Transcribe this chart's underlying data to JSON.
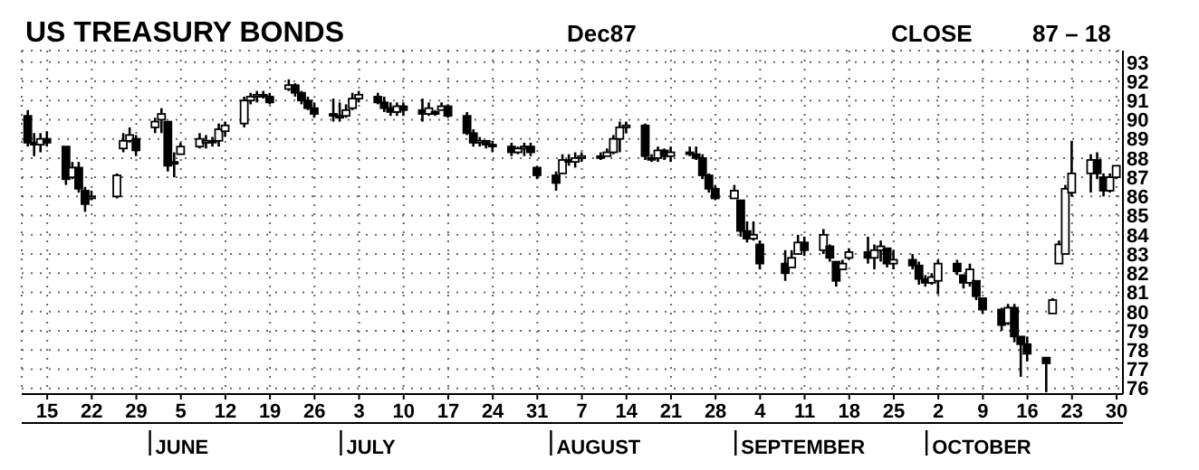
{
  "chart_data": {
    "type": "candlestick",
    "title": "US TREASURY BONDS",
    "subtitle": "Dec87",
    "color": "#000000",
    "annotations": [
      "CLOSE",
      "87 – 18",
      "JUNE",
      "JULY",
      "AUGUST",
      "SEPTEMBER",
      "OCTOBER"
    ],
    "x": [
      "--05-12",
      "--05-13",
      "--05-14",
      "--05-15",
      "--05-18",
      "--05-19",
      "--05-20",
      "--05-21",
      "--05-22",
      "--05-26",
      "--05-27",
      "--05-28",
      "--05-29",
      "--06-01",
      "--06-02",
      "--06-03",
      "--06-04",
      "--06-05",
      "--06-08",
      "--06-09",
      "--06-10",
      "--06-11",
      "--06-12",
      "--06-15",
      "--06-16",
      "--06-17",
      "--06-18",
      "--06-19",
      "--06-22",
      "--06-23",
      "--06-24",
      "--06-25",
      "--06-26",
      "--06-29",
      "--06-30",
      "--07-01",
      "--07-02",
      "--07-03",
      "--07-06",
      "--07-07",
      "--07-08",
      "--07-09",
      "--07-10",
      "--07-13",
      "--07-14",
      "--07-15",
      "--07-16",
      "--07-17",
      "--07-20",
      "--07-21",
      "--07-22",
      "--07-23",
      "--07-24",
      "--07-27",
      "--07-28",
      "--07-29",
      "--07-30",
      "--07-31",
      "--08-03",
      "--08-04",
      "--08-05",
      "--08-06",
      "--08-07",
      "--08-10",
      "--08-11",
      "--08-12",
      "--08-13",
      "--08-14",
      "--08-17",
      "--08-18",
      "--08-19",
      "--08-20",
      "--08-21",
      "--08-24",
      "--08-25",
      "--08-26",
      "--08-27",
      "--08-28",
      "--08-31",
      "--09-01",
      "--09-02",
      "--09-03",
      "--09-04",
      "--09-08",
      "--09-09",
      "--09-10",
      "--09-11",
      "--09-14",
      "--09-15",
      "--09-16",
      "--09-17",
      "--09-18",
      "--09-21",
      "--09-22",
      "--09-23",
      "--09-24",
      "--09-25",
      "--09-28",
      "--09-29",
      "--09-30",
      "--10-01",
      "--10-02",
      "--10-05",
      "--10-06",
      "--10-07",
      "--10-08",
      "--10-09",
      "--10-12",
      "--10-13",
      "--10-14",
      "--10-15",
      "--10-16",
      "--10-19",
      "--10-20",
      "--10-21",
      "--10-22",
      "--10-23",
      "--10-26",
      "--10-27",
      "--10-28",
      "--10-29",
      "--10-30"
    ],
    "ohlc": [
      [
        90.2,
        90.5,
        88.6,
        88.8
      ],
      [
        88.8,
        89.3,
        88.1,
        88.7
      ],
      [
        88.7,
        89.3,
        88.3,
        89.0
      ],
      [
        89.0,
        89.4,
        88.6,
        88.8
      ],
      [
        88.6,
        88.6,
        86.6,
        86.9
      ],
      [
        87.0,
        87.8,
        86.9,
        87.5
      ],
      [
        87.5,
        87.8,
        86.2,
        86.4
      ],
      [
        86.3,
        86.5,
        85.2,
        85.6
      ],
      [
        85.9,
        86.3,
        85.8,
        86.0
      ],
      [
        86.0,
        87.2,
        85.9,
        87.1
      ],
      [
        88.5,
        89.3,
        88.3,
        88.9
      ],
      [
        88.9,
        89.6,
        88.8,
        89.2
      ],
      [
        89.0,
        89.2,
        88.1,
        88.4
      ],
      [
        89.6,
        90.1,
        89.3,
        89.9
      ],
      [
        90.0,
        90.6,
        89.3,
        90.3
      ],
      [
        89.9,
        89.9,
        87.3,
        87.6
      ],
      [
        87.8,
        88.3,
        87.0,
        87.7
      ],
      [
        88.2,
        88.8,
        88.2,
        88.6
      ],
      [
        88.6,
        89.3,
        88.5,
        89.0
      ],
      [
        88.8,
        89.2,
        88.5,
        88.9
      ],
      [
        88.9,
        89.1,
        88.6,
        88.9
      ],
      [
        88.9,
        89.8,
        88.6,
        89.5
      ],
      [
        89.4,
        89.9,
        89.1,
        89.7
      ],
      [
        89.8,
        91.2,
        89.6,
        91.0
      ],
      [
        91.0,
        91.4,
        90.8,
        91.2
      ],
      [
        91.2,
        91.5,
        90.9,
        91.3
      ],
      [
        91.3,
        91.5,
        91.1,
        91.3
      ],
      [
        91.2,
        91.4,
        90.8,
        90.9
      ],
      [
        91.6,
        92.1,
        91.5,
        91.8
      ],
      [
        91.8,
        91.9,
        91.2,
        91.4
      ],
      [
        91.4,
        91.5,
        90.8,
        91.0
      ],
      [
        91.0,
        91.2,
        90.5,
        90.6
      ],
      [
        90.6,
        90.9,
        90.1,
        90.3
      ],
      [
        90.3,
        91.1,
        89.9,
        90.2
      ],
      [
        90.2,
        90.9,
        89.9,
        90.1
      ],
      [
        90.2,
        90.8,
        90.1,
        90.5
      ],
      [
        90.6,
        91.4,
        90.5,
        91.1
      ],
      [
        91.1,
        91.5,
        90.9,
        91.3
      ],
      [
        91.2,
        91.4,
        90.8,
        90.9
      ],
      [
        90.9,
        91.2,
        90.4,
        90.6
      ],
      [
        90.6,
        90.9,
        90.2,
        90.4
      ],
      [
        90.4,
        90.9,
        90.2,
        90.7
      ],
      [
        90.7,
        90.9,
        90.2,
        90.5
      ],
      [
        90.5,
        91.1,
        89.9,
        90.3
      ],
      [
        90.3,
        90.9,
        90.2,
        90.6
      ],
      [
        90.4,
        90.5,
        90.2,
        90.3
      ],
      [
        90.5,
        90.9,
        90.5,
        90.7
      ],
      [
        90.7,
        90.8,
        90.1,
        90.2
      ],
      [
        90.2,
        90.4,
        89.2,
        89.3
      ],
      [
        89.3,
        89.5,
        88.6,
        88.8
      ],
      [
        88.8,
        89.1,
        88.6,
        88.9
      ],
      [
        88.9,
        88.9,
        88.5,
        88.7
      ],
      [
        88.7,
        88.9,
        88.3,
        88.6
      ],
      [
        88.6,
        88.8,
        88.1,
        88.3
      ],
      [
        88.3,
        88.6,
        88.2,
        88.5
      ],
      [
        88.5,
        88.8,
        88.1,
        88.6
      ],
      [
        88.6,
        88.8,
        88.1,
        88.3
      ],
      [
        87.5,
        87.6,
        86.9,
        87.1
      ],
      [
        87.1,
        87.3,
        86.3,
        86.7
      ],
      [
        87.2,
        88.2,
        87.2,
        87.9
      ],
      [
        87.9,
        88.2,
        87.6,
        87.8
      ],
      [
        87.8,
        88.3,
        87.5,
        88.0
      ],
      [
        88.0,
        88.3,
        87.8,
        88.1
      ],
      [
        88.1,
        88.3,
        87.9,
        88.0
      ],
      [
        88.1,
        88.5,
        88.1,
        88.3
      ],
      [
        88.3,
        89.2,
        88.2,
        89.0
      ],
      [
        89.0,
        89.9,
        88.3,
        89.6
      ],
      [
        89.6,
        89.9,
        89.3,
        89.7
      ],
      [
        89.7,
        89.8,
        87.9,
        88.1
      ],
      [
        88.0,
        88.2,
        87.8,
        88.0
      ],
      [
        88.0,
        88.6,
        87.8,
        88.4
      ],
      [
        88.4,
        88.5,
        87.9,
        88.1
      ],
      [
        88.1,
        88.6,
        87.8,
        88.3
      ],
      [
        88.3,
        88.6,
        88.1,
        88.2
      ],
      [
        88.2,
        88.6,
        87.9,
        88.0
      ],
      [
        88.0,
        88.2,
        86.9,
        87.1
      ],
      [
        87.1,
        87.2,
        86.2,
        86.4
      ],
      [
        86.4,
        86.6,
        85.8,
        85.9
      ],
      [
        85.9,
        86.6,
        85.9,
        86.3
      ],
      [
        85.8,
        85.8,
        83.9,
        84.2
      ],
      [
        84.2,
        84.7,
        83.6,
        83.8
      ],
      [
        83.8,
        84.7,
        83.7,
        84.0
      ],
      [
        83.5,
        83.7,
        82.2,
        82.5
      ],
      [
        82.5,
        83.2,
        81.6,
        82.0
      ],
      [
        82.3,
        83.2,
        82.3,
        82.8
      ],
      [
        83.0,
        84.0,
        83.0,
        83.6
      ],
      [
        83.6,
        83.9,
        82.9,
        83.2
      ],
      [
        83.2,
        84.3,
        83.0,
        84.0
      ],
      [
        83.4,
        83.5,
        82.6,
        82.8
      ],
      [
        82.6,
        82.6,
        81.3,
        81.6
      ],
      [
        82.2,
        82.7,
        82.2,
        82.5
      ],
      [
        82.8,
        83.3,
        82.7,
        83.1
      ],
      [
        83.1,
        83.9,
        82.5,
        82.8
      ],
      [
        82.8,
        83.5,
        82.2,
        83.2
      ],
      [
        83.2,
        83.7,
        82.6,
        83.4
      ],
      [
        83.3,
        83.3,
        82.3,
        82.5
      ],
      [
        82.5,
        83.2,
        82.2,
        82.7
      ],
      [
        82.7,
        83.0,
        82.2,
        82.4
      ],
      [
        82.4,
        82.6,
        81.4,
        81.7
      ],
      [
        81.7,
        81.9,
        81.3,
        81.5
      ],
      [
        81.5,
        82.0,
        81.4,
        81.8
      ],
      [
        81.6,
        82.7,
        80.9,
        82.5
      ],
      [
        82.5,
        82.7,
        81.9,
        82.1
      ],
      [
        81.9,
        81.9,
        81.2,
        81.5
      ],
      [
        81.5,
        82.5,
        81.3,
        82.2
      ],
      [
        81.6,
        81.6,
        80.6,
        80.8
      ],
      [
        80.7,
        80.7,
        79.9,
        80.1
      ],
      [
        80.1,
        80.2,
        79.0,
        79.3
      ],
      [
        79.4,
        80.4,
        79.3,
        80.2
      ],
      [
        80.2,
        80.4,
        78.4,
        78.7
      ],
      [
        78.7,
        78.7,
        76.6,
        78.3
      ],
      [
        78.3,
        78.7,
        77.4,
        77.8
      ],
      [
        77.6,
        77.6,
        75.8,
        77.3
      ],
      [
        79.9,
        80.7,
        79.9,
        80.6
      ],
      [
        82.5,
        83.7,
        82.5,
        83.5
      ],
      [
        83.0,
        86.6,
        83.0,
        86.4
      ],
      [
        86.2,
        88.9,
        86.0,
        87.2
      ],
      [
        87.2,
        88.2,
        86.2,
        87.9
      ],
      [
        87.9,
        88.3,
        86.9,
        87.2
      ],
      [
        87.0,
        87.2,
        86.0,
        86.3
      ],
      [
        86.3,
        87.2,
        86.2,
        87.0
      ],
      [
        87.0,
        87.6,
        86.9,
        87.6
      ]
    ],
    "xlim": [
      "--05-11",
      "--10-31"
    ],
    "xticks": [
      {
        "value": "--05-15",
        "label": "15"
      },
      {
        "value": "--05-22",
        "label": "22"
      },
      {
        "value": "--05-29",
        "label": "29"
      },
      {
        "value": "--06-05",
        "label": "5"
      },
      {
        "value": "--06-12",
        "label": "12"
      },
      {
        "value": "--06-19",
        "label": "19"
      },
      {
        "value": "--06-26",
        "label": "26"
      },
      {
        "value": "--07-03",
        "label": "3"
      },
      {
        "value": "--07-10",
        "label": "10"
      },
      {
        "value": "--07-17",
        "label": "17"
      },
      {
        "value": "--07-24",
        "label": "24"
      },
      {
        "value": "--07-31",
        "label": "31"
      },
      {
        "value": "--08-07",
        "label": "7"
      },
      {
        "value": "--08-14",
        "label": "14"
      },
      {
        "value": "--08-21",
        "label": "21"
      },
      {
        "value": "--08-28",
        "label": "28"
      },
      {
        "value": "--09-04",
        "label": "4"
      },
      {
        "value": "--09-11",
        "label": "11"
      },
      {
        "value": "--09-18",
        "label": "18"
      },
      {
        "value": "--09-25",
        "label": "25"
      },
      {
        "value": "--10-02",
        "label": "2"
      },
      {
        "value": "--10-09",
        "label": "9"
      },
      {
        "value": "--10-16",
        "label": "16"
      },
      {
        "value": "--10-23",
        "label": "23"
      },
      {
        "value": "--10-30",
        "label": "30"
      }
    ],
    "ylim": [
      75.7,
      93.6
    ],
    "yticks": [
      76,
      77,
      78,
      79,
      80,
      81,
      82,
      83,
      84,
      85,
      86,
      87,
      88,
      89,
      90,
      91,
      92,
      93
    ],
    "grid": true
  }
}
